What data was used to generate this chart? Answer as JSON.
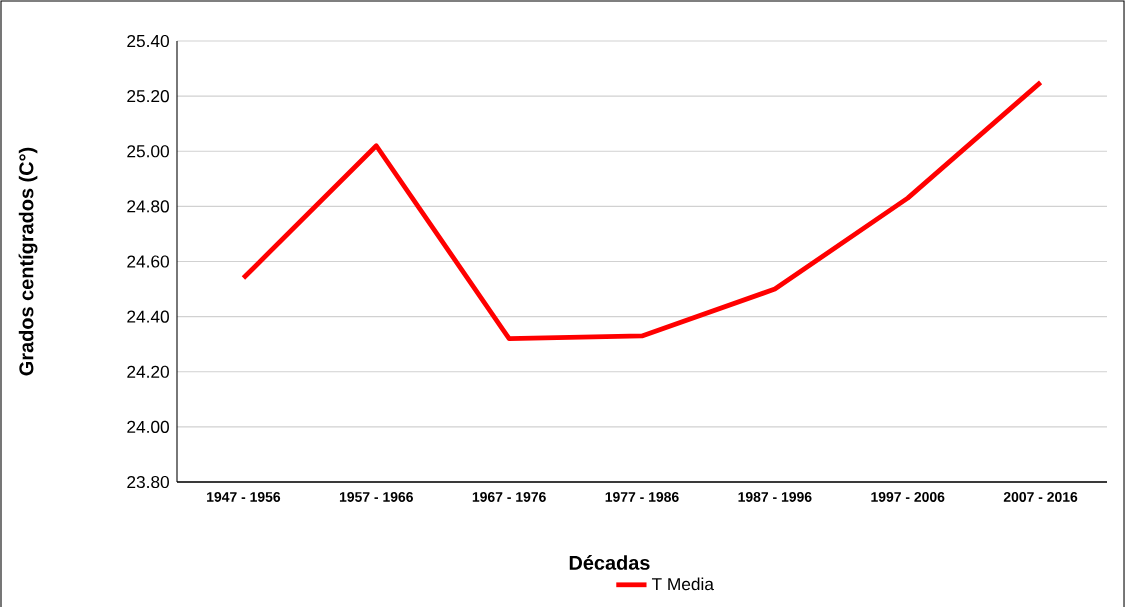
{
  "chart_data": {
    "type": "line",
    "xlabel": "Décadas",
    "ylabel": "Grados centígrados (C°)",
    "categories": [
      "1947 - 1956",
      "1957 - 1966",
      "1967 - 1976",
      "1977 - 1986",
      "1987 - 1996",
      "1997 - 2006",
      "2007 - 2016"
    ],
    "series": [
      {
        "name": "T Media",
        "color": "#ff0000",
        "values": [
          24.54,
          25.02,
          24.32,
          24.33,
          24.5,
          24.83,
          25.25
        ]
      }
    ],
    "ylim": [
      23.8,
      25.4
    ],
    "yticks": [
      {
        "value": 23.8,
        "label": "23.80"
      },
      {
        "value": 24.0,
        "label": "24.00"
      },
      {
        "value": 24.2,
        "label": "24.20"
      },
      {
        "value": 24.4,
        "label": "24.40"
      },
      {
        "value": 24.6,
        "label": "24.60"
      },
      {
        "value": 24.8,
        "label": "24.80"
      },
      {
        "value": 25.0,
        "label": "25.00"
      },
      {
        "value": 25.2,
        "label": "25.20"
      },
      {
        "value": 25.4,
        "label": "25.40"
      }
    ],
    "grid": "y",
    "legend": "bottom",
    "marker": "none",
    "line_style": "solid"
  }
}
